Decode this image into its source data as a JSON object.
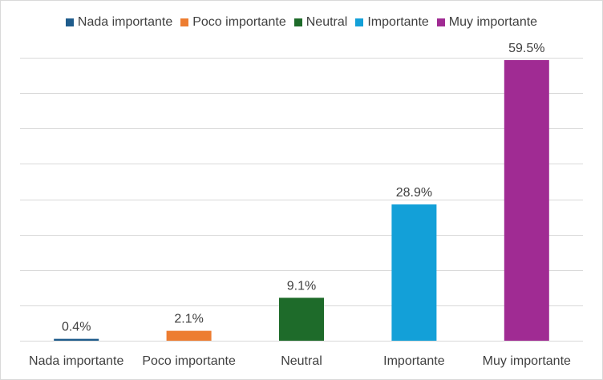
{
  "chart_data": {
    "type": "bar",
    "categories": [
      "Nada importante",
      "Poco importante",
      "Neutral",
      "Importante",
      "Muy importante"
    ],
    "values": [
      0.4,
      2.1,
      9.1,
      28.9,
      59.5
    ],
    "data_labels": [
      "0.4%",
      "2.1%",
      "9.1%",
      "28.9%",
      "59.5%"
    ],
    "colors": [
      "#1f5c8c",
      "#ed7d31",
      "#1e6b2a",
      "#13a0d8",
      "#a02b93"
    ],
    "legend": [
      "Nada importante",
      "Poco importante",
      "Neutral",
      "Importante",
      "Muy importante"
    ],
    "legend_position": "top",
    "ylim": [
      0,
      60
    ],
    "y_axis_visible": false,
    "grid": true,
    "gridline_step": 7.5,
    "gridline_color": "#d9d9d9",
    "title": "",
    "xlabel": "",
    "ylabel": ""
  }
}
